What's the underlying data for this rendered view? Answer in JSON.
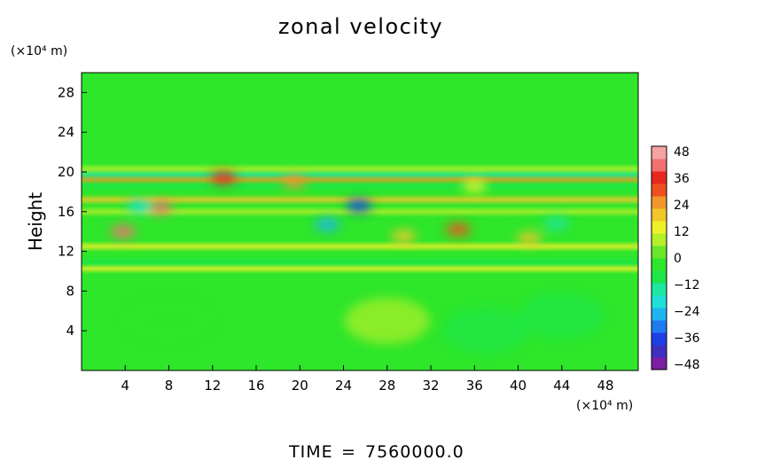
{
  "chart_data": {
    "type": "heatmap",
    "title": "zonal velocity",
    "ylabel": "Height",
    "xlabel": "",
    "x_unit": "(×10⁴ m)",
    "y_unit": "(×10⁴ m)",
    "xlim": [
      0,
      51
    ],
    "ylim": [
      0,
      30
    ],
    "x_ticks": [
      "4",
      "8",
      "12",
      "16",
      "20",
      "24",
      "28",
      "32",
      "36",
      "40",
      "44",
      "48"
    ],
    "y_ticks": [
      "4",
      "8",
      "12",
      "16",
      "20",
      "24",
      "28"
    ],
    "colorbar": {
      "range": [
        -48,
        48
      ],
      "ticks": [
        "48",
        "36",
        "24",
        "12",
        "0",
        "−12",
        "−24",
        "−36",
        "−48"
      ],
      "colors": [
        "#7b1fa2",
        "#3f2fbf",
        "#1f3fe6",
        "#1f7bf0",
        "#1fb4f0",
        "#1fe0d8",
        "#1fe6a0",
        "#1ee64a",
        "#2ee62a",
        "#6ae62a",
        "#b4ef2a",
        "#f0f02a",
        "#f0c82a",
        "#f0962a",
        "#f0501f",
        "#e6281f",
        "#f07070",
        "#f5a3a3"
      ]
    },
    "bands": [
      {
        "y": 10.3,
        "value": 14
      },
      {
        "y": 10.9,
        "value": -10
      },
      {
        "y": 12.5,
        "value": 13
      },
      {
        "y": 16.0,
        "value": 8
      },
      {
        "y": 17.2,
        "value": 16
      },
      {
        "y": 18.6,
        "value": -6
      },
      {
        "y": 19.3,
        "value": 22
      },
      {
        "y": 19.8,
        "value": -12
      },
      {
        "y": 20.3,
        "value": 6
      }
    ],
    "features": [
      {
        "x": 3.8,
        "y": 14.0,
        "value": 40
      },
      {
        "x": 7.2,
        "y": 16.4,
        "value": 42
      },
      {
        "x": 13.0,
        "y": 19.4,
        "value": 34
      },
      {
        "x": 19.5,
        "y": 19.0,
        "value": 24
      },
      {
        "x": 25.4,
        "y": 16.6,
        "value": -34
      },
      {
        "x": 22.5,
        "y": 14.7,
        "value": -26
      },
      {
        "x": 5.3,
        "y": 16.5,
        "value": -20
      },
      {
        "x": 34.5,
        "y": 14.2,
        "value": 28
      },
      {
        "x": 36.0,
        "y": 18.6,
        "value": 14
      },
      {
        "x": 29.5,
        "y": 13.5,
        "value": 16
      },
      {
        "x": 41.0,
        "y": 13.3,
        "value": 16
      },
      {
        "x": 43.5,
        "y": 14.8,
        "value": -16
      },
      {
        "x": 44.0,
        "y": 5.5,
        "value": -10
      },
      {
        "x": 37.0,
        "y": 4.0,
        "value": -10
      },
      {
        "x": 8.0,
        "y": 5.0,
        "value": -5
      },
      {
        "x": 28.0,
        "y": 5.0,
        "value": 6
      }
    ]
  },
  "footer": {
    "time_label": "TIME",
    "time_equals": "=",
    "time_value": "7560000.0"
  }
}
